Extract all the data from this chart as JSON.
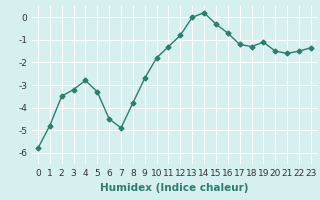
{
  "x": [
    0,
    1,
    2,
    3,
    4,
    5,
    6,
    7,
    8,
    9,
    10,
    11,
    12,
    13,
    14,
    15,
    16,
    17,
    18,
    19,
    20,
    21,
    22,
    23
  ],
  "y": [
    -5.8,
    -4.8,
    -3.5,
    -3.2,
    -2.8,
    -3.3,
    -4.5,
    -4.9,
    -3.8,
    -2.7,
    -1.8,
    -1.3,
    -0.8,
    0.0,
    0.2,
    -0.3,
    -0.7,
    -1.2,
    -1.3,
    -1.1,
    -1.5,
    -1.6,
    -1.5,
    -1.35
  ],
  "line_color": "#2e7d6e",
  "marker": "D",
  "marker_size": 2.5,
  "linewidth": 1.0,
  "xlabel": "Humidex (Indice chaleur)",
  "xlim": [
    -0.5,
    23.5
  ],
  "ylim": [
    -6.5,
    0.5
  ],
  "yticks": [
    0,
    -1,
    -2,
    -3,
    -4,
    -5,
    -6
  ],
  "xtick_labels": [
    "0",
    "1",
    "2",
    "3",
    "4",
    "5",
    "6",
    "7",
    "8",
    "9",
    "10",
    "11",
    "12",
    "13",
    "14",
    "15",
    "16",
    "17",
    "18",
    "19",
    "20",
    "21",
    "22",
    "23"
  ],
  "background_color": "#d6efef",
  "grid_color": "#ffffff",
  "xlabel_fontsize": 7.5,
  "tick_fontsize": 6.5
}
